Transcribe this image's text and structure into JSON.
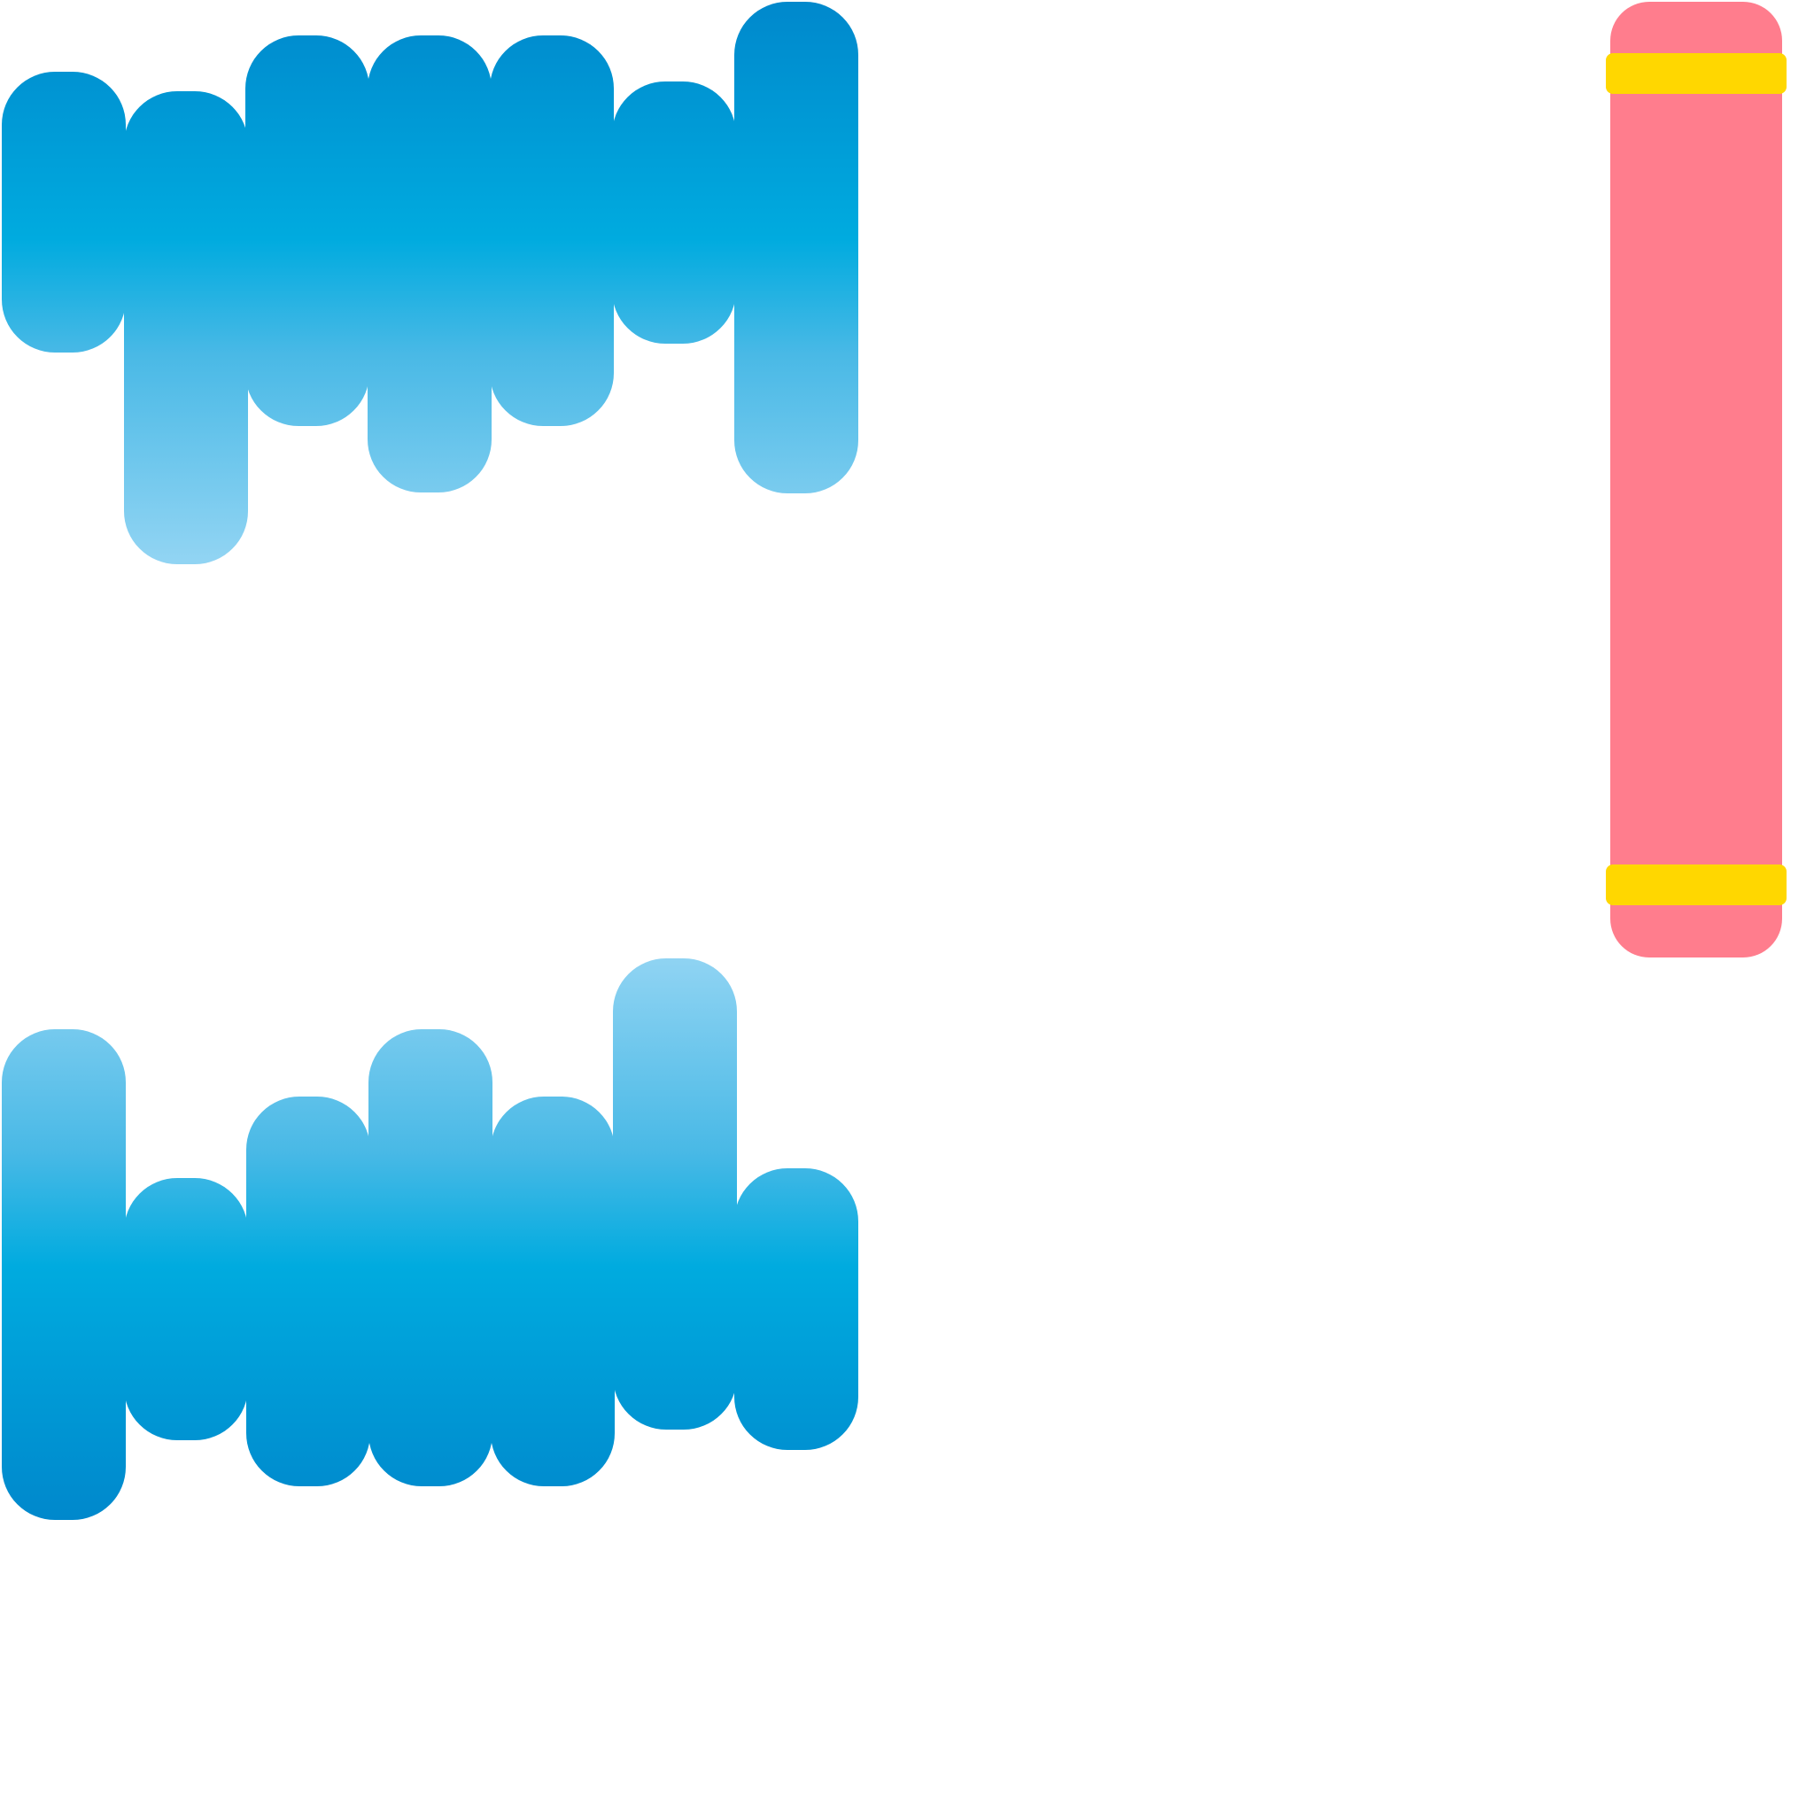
{
  "colors": {
    "bar_dark": "#0088cc",
    "bar_mid": "#00abdf",
    "bar_light": "#91d4f3",
    "side_pill": "#ff7d8d",
    "side_band": "#ffd700",
    "background": "#ffffff"
  },
  "top_group": {
    "bar_count": 7
  },
  "bottom_group": {
    "bar_count": 7
  },
  "side_pill": {
    "band_count": 2
  }
}
